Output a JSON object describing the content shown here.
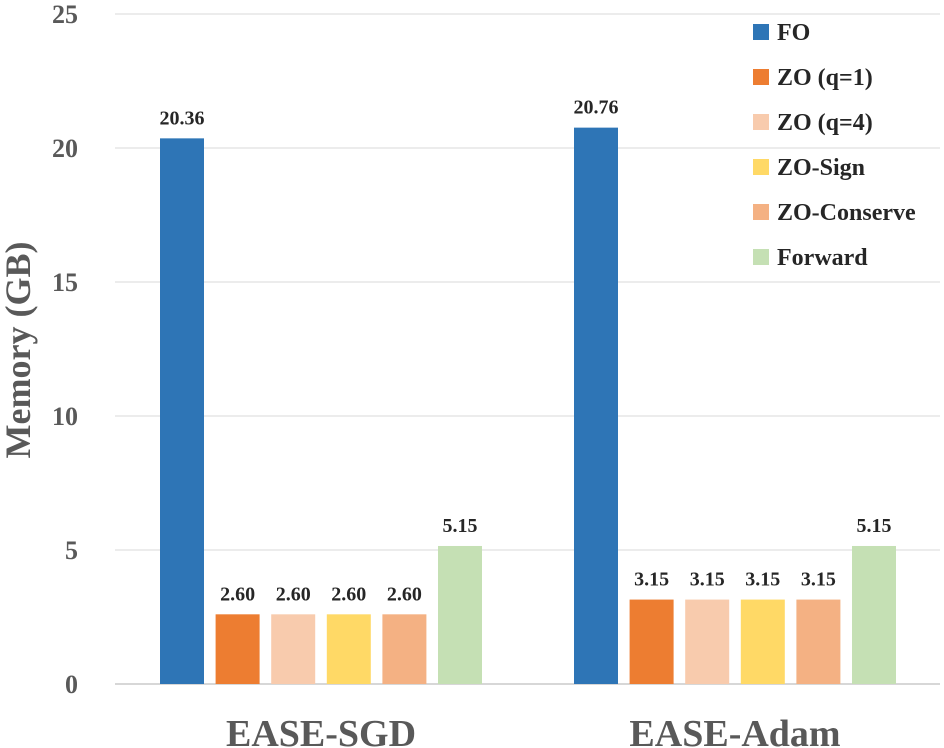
{
  "chart_data": {
    "type": "bar",
    "title": "",
    "xlabel": "",
    "ylabel": "Memory (GB)",
    "ylim": [
      0,
      25
    ],
    "yticks": [
      "0",
      "5",
      "10",
      "15",
      "20",
      "25"
    ],
    "grid": true,
    "legend_position": "top-right",
    "categories": [
      "EASE-SGD",
      "EASE-Adam"
    ],
    "series": [
      {
        "name": "FO",
        "color": "#2E75B6",
        "values": [
          20.36,
          20.76
        ],
        "labels": [
          "20.36",
          "20.76"
        ]
      },
      {
        "name": "ZO (q=1)",
        "color": "#ED7D31",
        "values": [
          2.6,
          3.15
        ],
        "labels": [
          "2.60",
          "3.15"
        ]
      },
      {
        "name": "ZO (q=4)",
        "color": "#F8CBAD",
        "values": [
          2.6,
          3.15
        ],
        "labels": [
          "2.60",
          "3.15"
        ]
      },
      {
        "name": "ZO-Sign",
        "color": "#FFD966",
        "values": [
          2.6,
          3.15
        ],
        "labels": [
          "2.60",
          "3.15"
        ]
      },
      {
        "name": "ZO-Conserve",
        "color": "#F4B183",
        "values": [
          2.6,
          3.15
        ],
        "labels": [
          "2.60",
          "3.15"
        ]
      },
      {
        "name": "Forward",
        "color": "#C5E0B4",
        "values": [
          5.15,
          5.15
        ],
        "labels": [
          "5.15",
          "5.15"
        ]
      }
    ]
  }
}
